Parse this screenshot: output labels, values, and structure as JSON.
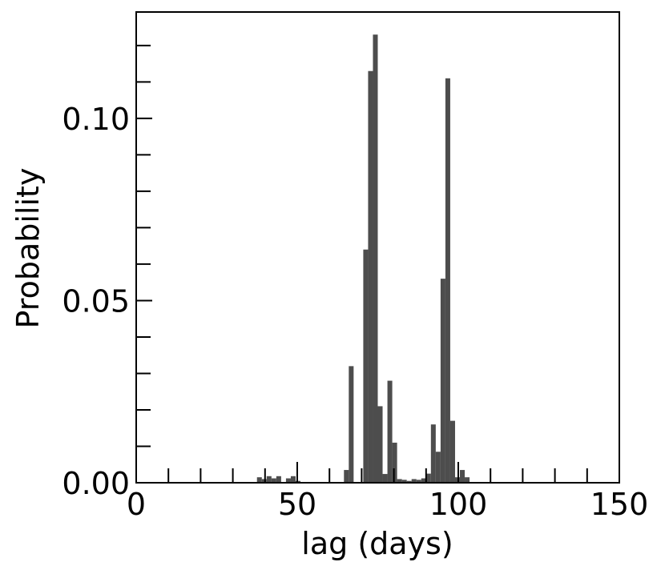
{
  "chart_data": {
    "type": "histogram",
    "xlabel": "lag (days)",
    "ylabel": "Probability",
    "bins": [
      37.5,
      39,
      40.5,
      42,
      43.5,
      45,
      46.5,
      48,
      49.5,
      51,
      52.5,
      54,
      55.5,
      57,
      58.5,
      60,
      61.5,
      63,
      64.5,
      66,
      67.5,
      69,
      70.5,
      72,
      73.5,
      75,
      76.5,
      78,
      79.5,
      81,
      82.5,
      84,
      85.5,
      87,
      88.5,
      90,
      91.5,
      93,
      94.5,
      96,
      97.5,
      99,
      100.5,
      102,
      103.5,
      105,
      106.5
    ],
    "values": [
      0.0015,
      0.001,
      0.0018,
      0.0012,
      0.0018,
      0,
      0.0012,
      0.0018,
      0.0005,
      0,
      0,
      0,
      0,
      0,
      0,
      0,
      0,
      0,
      0.0035,
      0.032,
      0,
      0,
      0.064,
      0.113,
      0.123,
      0.021,
      0.0024,
      0.028,
      0.011,
      0.001,
      0.0008,
      0.0005,
      0.001,
      0.0008,
      0.0012,
      0.0025,
      0.016,
      0.0085,
      0.056,
      0.111,
      0.017,
      0.0015,
      0.0035,
      0.0015,
      0,
      0
    ],
    "color": "#4d4d4d",
    "xlim": [
      0,
      150
    ],
    "xticks": [
      0,
      50,
      100,
      150
    ],
    "xminorticks": [
      10,
      20,
      30,
      40,
      60,
      70,
      80,
      90,
      110,
      120,
      130,
      140
    ],
    "ylim": [
      0,
      0.1292
    ],
    "yticks": [
      {
        "value": 0,
        "label": "0.00"
      },
      {
        "value": 0.05,
        "label": "0.05"
      },
      {
        "value": 0.1,
        "label": "0.10"
      }
    ],
    "yminorticks": [
      0.01,
      0.02,
      0.03,
      0.04,
      0.06,
      0.07,
      0.08,
      0.09,
      0.11,
      0.12
    ]
  }
}
